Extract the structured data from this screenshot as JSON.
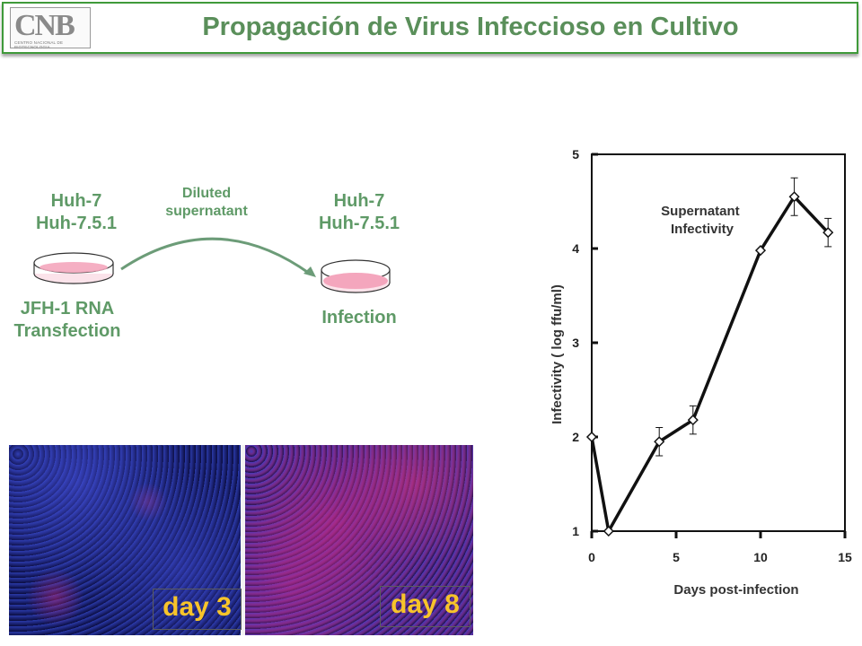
{
  "header": {
    "title": "Propagación de Virus Infeccioso en Cultivo",
    "logo_text": "CNB",
    "logo_subtext": "CENTRO NACIONAL DE BIOTECNOLOGIA"
  },
  "diagram": {
    "left_cells_1": "Huh-7",
    "left_cells_2": "Huh-7.5.1",
    "left_caption_1": "JFH-1 RNA",
    "left_caption_2": "Transfection",
    "arrow_label_1": "Diluted",
    "arrow_label_2": "supernatant",
    "right_cells_1": "Huh-7",
    "right_cells_2": "Huh-7.5.1",
    "right_caption": "Infection",
    "dish_color": "#f4a6bd",
    "arrow_color": "#6c9c78"
  },
  "micrographs": {
    "left_label": "day 3",
    "right_label": "day 8"
  },
  "chart_data": {
    "type": "line",
    "title": "",
    "annotation": [
      "Supernatant",
      "Infectivity"
    ],
    "xlabel": "Days post-infection",
    "ylabel": "Infectivity ( log ffu/ml)",
    "xlim": [
      0,
      15
    ],
    "ylim": [
      1,
      5
    ],
    "xticks": [
      0,
      5,
      10,
      15
    ],
    "yticks": [
      1,
      2,
      3,
      4,
      5
    ],
    "grid": false,
    "series": [
      {
        "x": [
          0,
          1,
          4,
          6,
          10,
          12,
          14
        ],
        "y": [
          2.0,
          1.0,
          1.95,
          2.18,
          3.98,
          4.55,
          4.17
        ],
        "error": [
          0,
          0,
          0.15,
          0.15,
          0,
          0.2,
          0.15
        ]
      }
    ]
  }
}
